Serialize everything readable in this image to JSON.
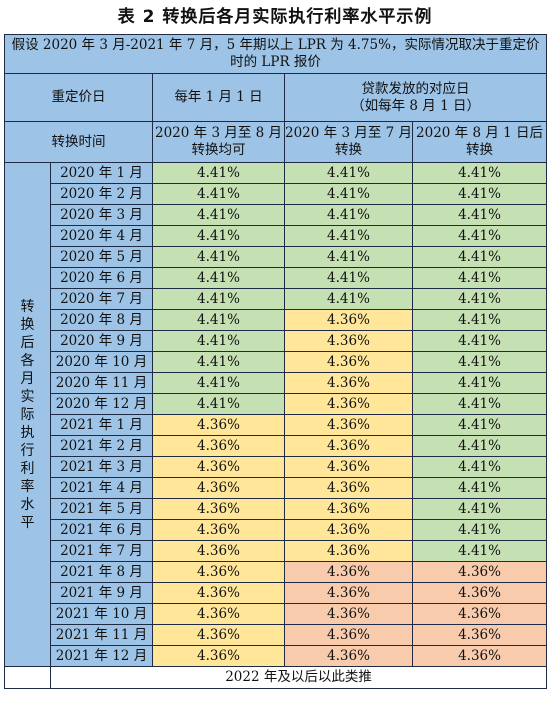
{
  "title": "表 2  转换后各月实际执行利率水平示例",
  "note": "假设 2020 年 3 月-2021 年 7 月，5 年期以上 LPR 为 4.75%，实际情况取决于重定价时的 LPR 报价",
  "header": {
    "reprice_day": "重定价日",
    "col1_reprice": "每年 1 月 1 日",
    "col2_reprice_line1": "贷款发放的对应日",
    "col2_reprice_line2": "（如每年 8 月 1 日）",
    "convert_time": "转换时间",
    "col1_convert_line1": "2020 年 3 月至 8 月",
    "col1_convert_line2": "转换均可",
    "col2_convert_line1": "2020 年 3 月至 7 月",
    "col2_convert_line2": "转换",
    "col3_convert_line1": "2020 年 8 月 1 日后",
    "col3_convert_line2": "转换"
  },
  "side_label": "转换后各月实际执行利率水平",
  "rows": [
    {
      "month": "2020 年 1 月",
      "c1": "4.41%",
      "c2": "4.41%",
      "c3": "4.41%"
    },
    {
      "month": "2020 年 2 月",
      "c1": "4.41%",
      "c2": "4.41%",
      "c3": "4.41%"
    },
    {
      "month": "2020 年 3 月",
      "c1": "4.41%",
      "c2": "4.41%",
      "c3": "4.41%"
    },
    {
      "month": "2020 年 4 月",
      "c1": "4.41%",
      "c2": "4.41%",
      "c3": "4.41%"
    },
    {
      "month": "2020 年 5 月",
      "c1": "4.41%",
      "c2": "4.41%",
      "c3": "4.41%"
    },
    {
      "month": "2020 年 6 月",
      "c1": "4.41%",
      "c2": "4.41%",
      "c3": "4.41%"
    },
    {
      "month": "2020 年 7 月",
      "c1": "4.41%",
      "c2": "4.41%",
      "c3": "4.41%"
    },
    {
      "month": "2020 年 8 月",
      "c1": "4.41%",
      "c2": "4.36%",
      "c3": "4.41%"
    },
    {
      "month": "2020 年 9 月",
      "c1": "4.41%",
      "c2": "4.36%",
      "c3": "4.41%"
    },
    {
      "month": "2020 年 10 月",
      "c1": "4.41%",
      "c2": "4.36%",
      "c3": "4.41%"
    },
    {
      "month": "2020 年 11 月",
      "c1": "4.41%",
      "c2": "4.36%",
      "c3": "4.41%"
    },
    {
      "month": "2020 年 12 月",
      "c1": "4.41%",
      "c2": "4.36%",
      "c3": "4.41%"
    },
    {
      "month": "2021 年 1 月",
      "c1": "4.36%",
      "c2": "4.36%",
      "c3": "4.41%"
    },
    {
      "month": "2021 年 2 月",
      "c1": "4.36%",
      "c2": "4.36%",
      "c3": "4.41%"
    },
    {
      "month": "2021 年 3 月",
      "c1": "4.36%",
      "c2": "4.36%",
      "c3": "4.41%"
    },
    {
      "month": "2021 年 4 月",
      "c1": "4.36%",
      "c2": "4.36%",
      "c3": "4.41%"
    },
    {
      "month": "2021 年 5 月",
      "c1": "4.36%",
      "c2": "4.36%",
      "c3": "4.41%"
    },
    {
      "month": "2021 年 6 月",
      "c1": "4.36%",
      "c2": "4.36%",
      "c3": "4.41%"
    },
    {
      "month": "2021 年 7 月",
      "c1": "4.36%",
      "c2": "4.36%",
      "c3": "4.41%"
    },
    {
      "month": "2021 年 8 月",
      "c1": "4.36%",
      "c2": "4.36%",
      "c3": "4.36%"
    },
    {
      "month": "2021 年 9 月",
      "c1": "4.36%",
      "c2": "4.36%",
      "c3": "4.36%"
    },
    {
      "month": "2021 年 10 月",
      "c1": "4.36%",
      "c2": "4.36%",
      "c3": "4.36%"
    },
    {
      "month": "2021 年 11 月",
      "c1": "4.36%",
      "c2": "4.36%",
      "c3": "4.36%"
    },
    {
      "month": "2021 年 12 月",
      "c1": "4.36%",
      "c2": "4.36%",
      "c3": "4.36%"
    }
  ],
  "footer": "2022 年及以后以此类推",
  "colors": {
    "header_blue": "#9dc3e6",
    "rate_441_green": "#c5e0b3",
    "rate_436_yellow": "#ffe699",
    "rate_436_orange": "#f8cbad"
  }
}
